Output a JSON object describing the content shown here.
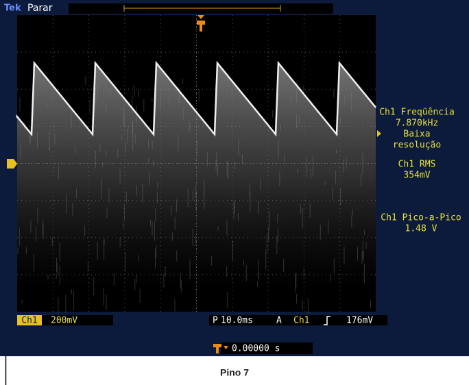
{
  "header": {
    "brand": "Tek",
    "status": "Parar"
  },
  "measurements": [
    {
      "label": "Ch1 Freqüência",
      "value": "7.870kHz",
      "note": [
        "Baixa",
        "resolução"
      ]
    },
    {
      "label": "Ch1 RMS",
      "value": "354mV"
    },
    {
      "label": "Ch1 Pico-a-Pico",
      "value": "1.48 V"
    }
  ],
  "status_bar": {
    "channel": "Ch1",
    "scale": "200mV",
    "horizontal_label": "P",
    "timebase": "10.0ms",
    "trigger_label": "A",
    "trigger_source": "Ch1",
    "trigger_level": "176mV"
  },
  "trigger_position": "0.00000 s",
  "caption": "Pino 7"
}
